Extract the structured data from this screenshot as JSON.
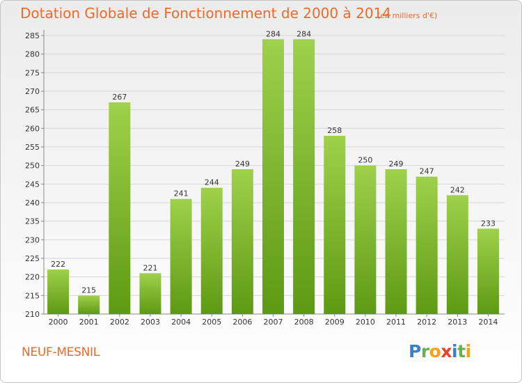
{
  "header": {
    "title": "Dotation Globale de Fonctionnement de 2000 à 2014",
    "units": "(en milliers d'€)"
  },
  "footer": {
    "commune": "NEUF-MESNIL",
    "logo_letters": [
      {
        "ch": "P",
        "color": "#3a7fc8"
      },
      {
        "ch": "r",
        "color": "#6ab04c"
      },
      {
        "ch": "o",
        "color": "#f2a21b"
      },
      {
        "ch": "x",
        "color": "#e8402a"
      },
      {
        "ch": "i",
        "color": "#3a7fc8"
      },
      {
        "ch": "t",
        "color": "#6ab04c"
      },
      {
        "ch": "i",
        "color": "#f2a21b"
      }
    ]
  },
  "colors": {
    "bar_light": "#9fd14b",
    "bar_dark": "#5d9a12",
    "accent": "#ee6a2a"
  },
  "chart_data": {
    "type": "bar",
    "categories": [
      "2000",
      "2001",
      "2002",
      "2003",
      "2004",
      "2005",
      "2006",
      "2007",
      "2008",
      "2009",
      "2010",
      "2011",
      "2012",
      "2013",
      "2014"
    ],
    "values": [
      222,
      215,
      267,
      221,
      241,
      244,
      249,
      284,
      284,
      258,
      250,
      249,
      247,
      242,
      233
    ],
    "title": "Dotation Globale de Fonctionnement de 2000 à 2014",
    "ylabel": "(en milliers d'€)",
    "ylim": [
      210,
      285
    ],
    "yticks": [
      210,
      215,
      220,
      225,
      230,
      235,
      240,
      245,
      250,
      255,
      260,
      265,
      270,
      275,
      280,
      285
    ],
    "grid": true
  }
}
